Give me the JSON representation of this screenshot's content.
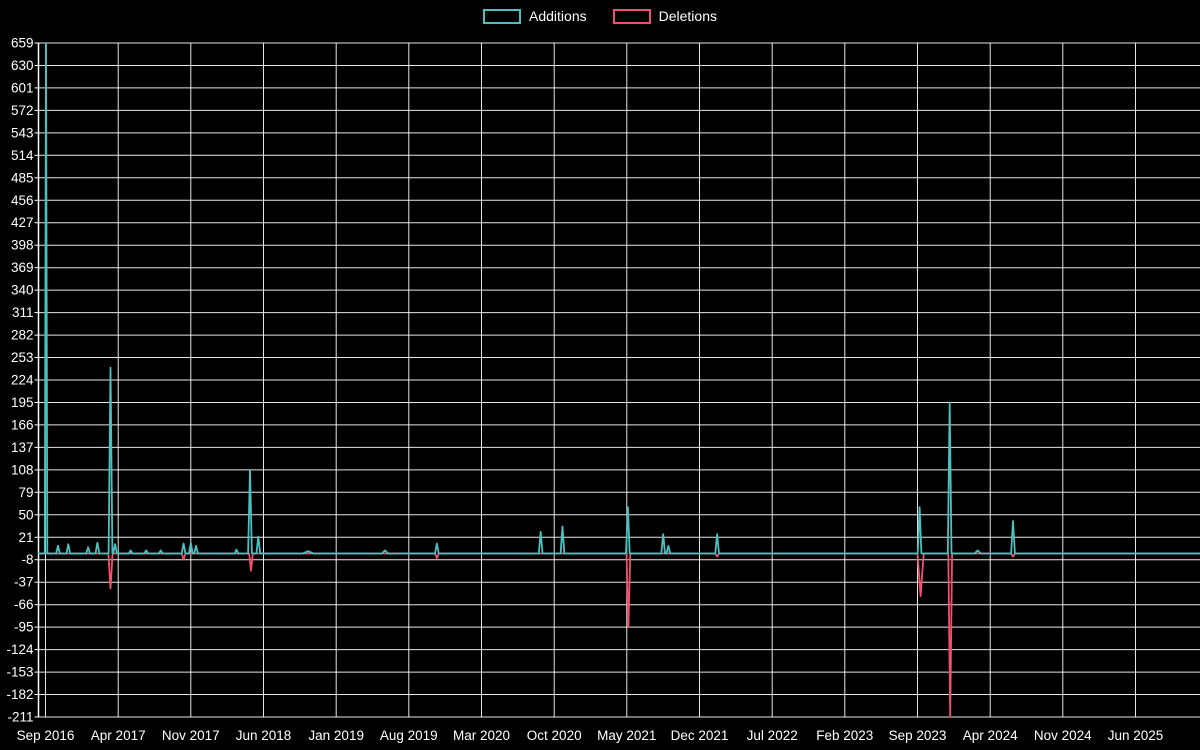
{
  "chart_data": {
    "type": "line",
    "title": "",
    "xlabel": "",
    "ylabel": "",
    "background_color": "#000000",
    "grid": true,
    "grid_color": "#ffffff",
    "text_color": "#ffffff",
    "legend_position": "top-center",
    "ylim": [
      -211,
      659
    ],
    "y_ticks": [
      659,
      630,
      601,
      572,
      543,
      514,
      485,
      456,
      427,
      398,
      369,
      340,
      311,
      282,
      253,
      224,
      195,
      166,
      137,
      108,
      79,
      50,
      21,
      -8,
      -37,
      -66,
      -95,
      -124,
      -153,
      -182,
      -211
    ],
    "x_tick_labels": [
      "Sep 2016",
      "Apr 2017",
      "Nov 2017",
      "Jun 2018",
      "Jan 2019",
      "Aug 2019",
      "Mar 2020",
      "Oct 2020",
      "May 2021",
      "Dec 2021",
      "Jul 2022",
      "Feb 2023",
      "Sep 2023",
      "Apr 2024",
      "Nov 2024",
      "Jun 2025"
    ],
    "x_tick_interval_months": 7,
    "x_total_months": 111,
    "series": [
      {
        "name": "Additions",
        "color": "#4bc0c0",
        "baseline": 0,
        "points": [
          [
            0.05,
            659,
            0.12
          ],
          [
            1.2,
            10
          ],
          [
            2.2,
            12
          ],
          [
            4.1,
            8
          ],
          [
            5.0,
            14
          ],
          [
            6.26,
            240
          ],
          [
            6.7,
            12
          ],
          [
            8.2,
            4
          ],
          [
            9.7,
            4
          ],
          [
            11.1,
            4
          ],
          [
            13.3,
            13
          ],
          [
            14.0,
            14
          ],
          [
            14.5,
            10
          ],
          [
            18.4,
            5
          ],
          [
            19.7,
            108
          ],
          [
            20.5,
            22
          ],
          [
            25.3,
            3,
            0.5
          ],
          [
            32.7,
            4,
            0.3
          ],
          [
            37.7,
            13
          ],
          [
            47.7,
            28
          ],
          [
            49.8,
            35
          ],
          [
            56.1,
            60
          ],
          [
            59.5,
            25
          ],
          [
            60.0,
            10
          ],
          [
            64.7,
            25
          ],
          [
            84.2,
            60
          ],
          [
            87.1,
            195
          ],
          [
            89.8,
            4,
            0.3
          ],
          [
            93.2,
            42
          ]
        ]
      },
      {
        "name": "Deletions",
        "color": "#f0506e",
        "baseline": 0,
        "points": [
          [
            6.26,
            -45,
            0.2
          ],
          [
            13.3,
            -8
          ],
          [
            19.8,
            -22
          ],
          [
            37.7,
            -6
          ],
          [
            56.15,
            -95
          ],
          [
            64.7,
            -4
          ],
          [
            84.3,
            -55,
            0.3
          ],
          [
            87.15,
            -211
          ],
          [
            93.2,
            -4
          ]
        ]
      }
    ]
  }
}
